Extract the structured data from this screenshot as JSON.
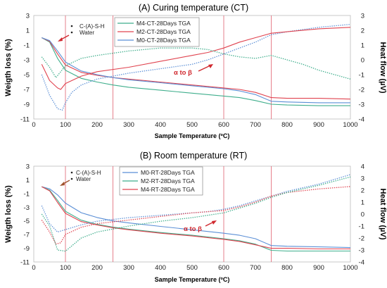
{
  "figure": {
    "colors": {
      "M0": "#5b8fd6",
      "M2": "#e0434f",
      "M4": "#3fae8c",
      "vline": "#e06070",
      "annotation": "#d0282e"
    }
  },
  "chart_data": [
    {
      "type": "line",
      "title": "(A) Curing temperature (CT)",
      "xlabel": "Sample Temperature (ºC)",
      "ylabel": "Weigth loss (%)",
      "y2label": "Heat flow (µV)",
      "xlim": [
        0,
        1000
      ],
      "ylim": [
        -11,
        3
      ],
      "y2lim": [
        -4,
        3
      ],
      "xticks": [
        "0",
        "100",
        "200",
        "300",
        "400",
        "500",
        "600",
        "700",
        "800",
        "900",
        "1000"
      ],
      "yticks": [
        "3",
        "1",
        "-1",
        "-3",
        "-5",
        "-7",
        "-9",
        "-11"
      ],
      "y2ticks": [
        "3",
        "2",
        "1",
        "0",
        "-1",
        "-2",
        "-3",
        "-4"
      ],
      "vlines": [
        100,
        250,
        600,
        750
      ],
      "legend": [
        "M4-CT-28Days TGA",
        "M2-CT-28Days TGA",
        "M0-CT-28Days TGA"
      ],
      "legend_keys": [
        "M4",
        "M2",
        "M0"
      ],
      "annotations": {
        "cash": "C-(A)-S-H",
        "water": "Water",
        "transition": "α to β"
      },
      "series": [
        {
          "name": "M4-CT-28Days TGA",
          "key": "M4",
          "axis": "left",
          "style": "solid",
          "x": [
            25,
            50,
            75,
            100,
            150,
            200,
            250,
            300,
            400,
            500,
            600,
            650,
            700,
            750,
            800,
            900,
            1000
          ],
          "y": [
            0,
            -0.6,
            -2.8,
            -4.4,
            -5.5,
            -6.0,
            -6.4,
            -6.7,
            -7.1,
            -7.5,
            -7.9,
            -8.1,
            -8.5,
            -9.0,
            -9.1,
            -9.2,
            -9.2
          ]
        },
        {
          "name": "M2-CT-28Days TGA",
          "key": "M2",
          "axis": "left",
          "style": "solid",
          "x": [
            25,
            50,
            75,
            100,
            150,
            200,
            250,
            300,
            400,
            500,
            600,
            650,
            700,
            750,
            800,
            900,
            1000
          ],
          "y": [
            0,
            -0.5,
            -2.2,
            -3.7,
            -4.7,
            -5.1,
            -5.4,
            -5.6,
            -6.0,
            -6.4,
            -6.8,
            -7.0,
            -7.4,
            -8.1,
            -8.2,
            -8.2,
            -8.3
          ]
        },
        {
          "name": "M0-CT-28Days TGA",
          "key": "M0",
          "axis": "left",
          "style": "solid",
          "x": [
            25,
            50,
            75,
            100,
            150,
            200,
            250,
            300,
            400,
            500,
            600,
            650,
            700,
            750,
            800,
            900,
            1000
          ],
          "y": [
            0,
            -0.4,
            -1.8,
            -3.3,
            -4.5,
            -5.0,
            -5.4,
            -5.7,
            -6.1,
            -6.5,
            -6.9,
            -7.2,
            -7.7,
            -8.6,
            -8.7,
            -8.8,
            -8.8
          ]
        },
        {
          "name": "",
          "key": "M0",
          "axis": "right",
          "style": "dotted",
          "x": [
            25,
            50,
            75,
            90,
            100,
            120,
            150,
            200,
            300,
            400,
            500,
            550,
            600,
            650,
            700,
            750,
            800,
            900,
            1000
          ],
          "y": [
            -1.0,
            -2.4,
            -3.3,
            -3.4,
            -2.9,
            -2.2,
            -1.7,
            -1.3,
            -0.9,
            -0.6,
            -0.3,
            0.0,
            0.4,
            0.8,
            1.2,
            1.7,
            1.9,
            2.2,
            2.4
          ]
        },
        {
          "name": "",
          "key": "M2",
          "axis": "right",
          "style": "solid",
          "x": [
            25,
            50,
            75,
            85,
            100,
            150,
            200,
            300,
            400,
            500,
            550,
            600,
            650,
            700,
            750,
            800,
            900,
            1000
          ],
          "y": [
            -0.3,
            -1.4,
            -1.9,
            -2.0,
            -1.6,
            -1.1,
            -0.8,
            -0.5,
            -0.1,
            0.3,
            0.5,
            0.8,
            1.2,
            1.5,
            1.8,
            1.9,
            2.1,
            2.2
          ]
        },
        {
          "name": "",
          "key": "M4",
          "axis": "right",
          "style": "dotted",
          "x": [
            25,
            50,
            70,
            100,
            150,
            200,
            300,
            400,
            500,
            550,
            600,
            650,
            700,
            750,
            800,
            850,
            900,
            950,
            1000
          ],
          "y": [
            0.2,
            -0.5,
            -1.2,
            -0.4,
            0.1,
            0.3,
            0.6,
            0.8,
            0.8,
            0.7,
            0.4,
            0.2,
            0.1,
            0.3,
            0.0,
            -0.3,
            -0.7,
            -1.0,
            -1.3
          ]
        }
      ]
    },
    {
      "type": "line",
      "title": "(B) Room temperature (RT)",
      "xlabel": "Sample Temperature (ºC)",
      "ylabel": "Weigth loss (%)",
      "y2label": "Heat flow (µV)",
      "xlim": [
        0,
        1000
      ],
      "ylim": [
        -11,
        3
      ],
      "y2lim": [
        -4,
        4
      ],
      "xticks": [
        "0",
        "100",
        "200",
        "300",
        "400",
        "500",
        "600",
        "700",
        "800",
        "900",
        "1000"
      ],
      "yticks": [
        "3",
        "1",
        "-1",
        "-3",
        "-5",
        "-7",
        "-9",
        "-11"
      ],
      "y2ticks": [
        "4",
        "3",
        "2",
        "1",
        "0",
        "-1",
        "-2",
        "-3",
        "-4"
      ],
      "vlines": [
        100,
        250,
        600,
        750
      ],
      "legend": [
        "M0-RT-28Days TGA",
        "M2-RT-28Days TGA",
        "M4-RT-28Days TGA"
      ],
      "legend_keys": [
        "M0",
        "M4",
        "M2"
      ],
      "annotations": {
        "cash": "C-(A)-S-H",
        "water": "Water",
        "transition": "α to β"
      },
      "series": [
        {
          "name": "M0-RT-28Days TGA",
          "key": "M0",
          "axis": "left",
          "style": "solid",
          "x": [
            25,
            50,
            75,
            100,
            150,
            200,
            250,
            300,
            400,
            500,
            600,
            650,
            700,
            750,
            800,
            900,
            1000
          ],
          "y": [
            0,
            -0.3,
            -1.2,
            -2.4,
            -3.8,
            -4.5,
            -5.0,
            -5.3,
            -5.8,
            -6.3,
            -6.8,
            -7.1,
            -7.6,
            -8.6,
            -8.7,
            -8.8,
            -8.9
          ]
        },
        {
          "name": "M2-RT-28Days TGA",
          "key": "M4",
          "axis": "left",
          "style": "solid",
          "x": [
            25,
            50,
            75,
            100,
            150,
            200,
            250,
            300,
            400,
            500,
            600,
            650,
            700,
            750,
            800,
            900,
            1000
          ],
          "y": [
            0,
            -0.5,
            -2.0,
            -3.6,
            -4.9,
            -5.5,
            -5.9,
            -6.2,
            -6.7,
            -7.1,
            -7.6,
            -7.9,
            -8.4,
            -9.3,
            -9.4,
            -9.4,
            -9.4
          ]
        },
        {
          "name": "M4-RT-28Days TGA",
          "key": "M2",
          "axis": "left",
          "style": "solid",
          "x": [
            25,
            50,
            75,
            100,
            150,
            200,
            250,
            300,
            400,
            500,
            600,
            650,
            700,
            750,
            800,
            900,
            1000
          ],
          "y": [
            0,
            -0.6,
            -2.3,
            -3.9,
            -5.1,
            -5.6,
            -6.0,
            -6.3,
            -6.8,
            -7.2,
            -7.7,
            -8.0,
            -8.5,
            -9.0,
            -9.0,
            -9.1,
            -9.1
          ]
        },
        {
          "name": "",
          "key": "M0",
          "axis": "right",
          "style": "dotted",
          "x": [
            25,
            50,
            75,
            100,
            150,
            200,
            300,
            400,
            500,
            550,
            600,
            650,
            700,
            750,
            800,
            900,
            1000
          ],
          "y": [
            0.7,
            -0.8,
            -1.5,
            -1.3,
            -0.9,
            -0.6,
            -0.3,
            -0.1,
            0.1,
            0.2,
            0.4,
            0.7,
            1.1,
            1.5,
            1.9,
            2.5,
            3.3
          ]
        },
        {
          "name": "",
          "key": "M2",
          "axis": "right",
          "style": "dotted",
          "x": [
            25,
            50,
            70,
            85,
            100,
            150,
            200,
            300,
            400,
            500,
            550,
            600,
            650,
            700,
            750,
            800,
            900,
            1000
          ],
          "y": [
            -0.5,
            -1.5,
            -2.5,
            -2.4,
            -1.7,
            -1.1,
            -0.8,
            -0.5,
            -0.2,
            0.1,
            0.2,
            0.3,
            0.6,
            1.0,
            1.5,
            1.8,
            2.1,
            2.3
          ]
        },
        {
          "name": "",
          "key": "M4",
          "axis": "right",
          "style": "dotted",
          "x": [
            25,
            50,
            75,
            100,
            150,
            200,
            300,
            400,
            500,
            550,
            600,
            650,
            700,
            750,
            800,
            900,
            1000
          ],
          "y": [
            0.0,
            -1.0,
            -3.0,
            -3.1,
            -2.0,
            -1.5,
            -1.0,
            -0.6,
            -0.3,
            -0.1,
            0.1,
            0.5,
            0.9,
            1.4,
            1.8,
            2.4,
            3.1
          ]
        }
      ]
    }
  ]
}
